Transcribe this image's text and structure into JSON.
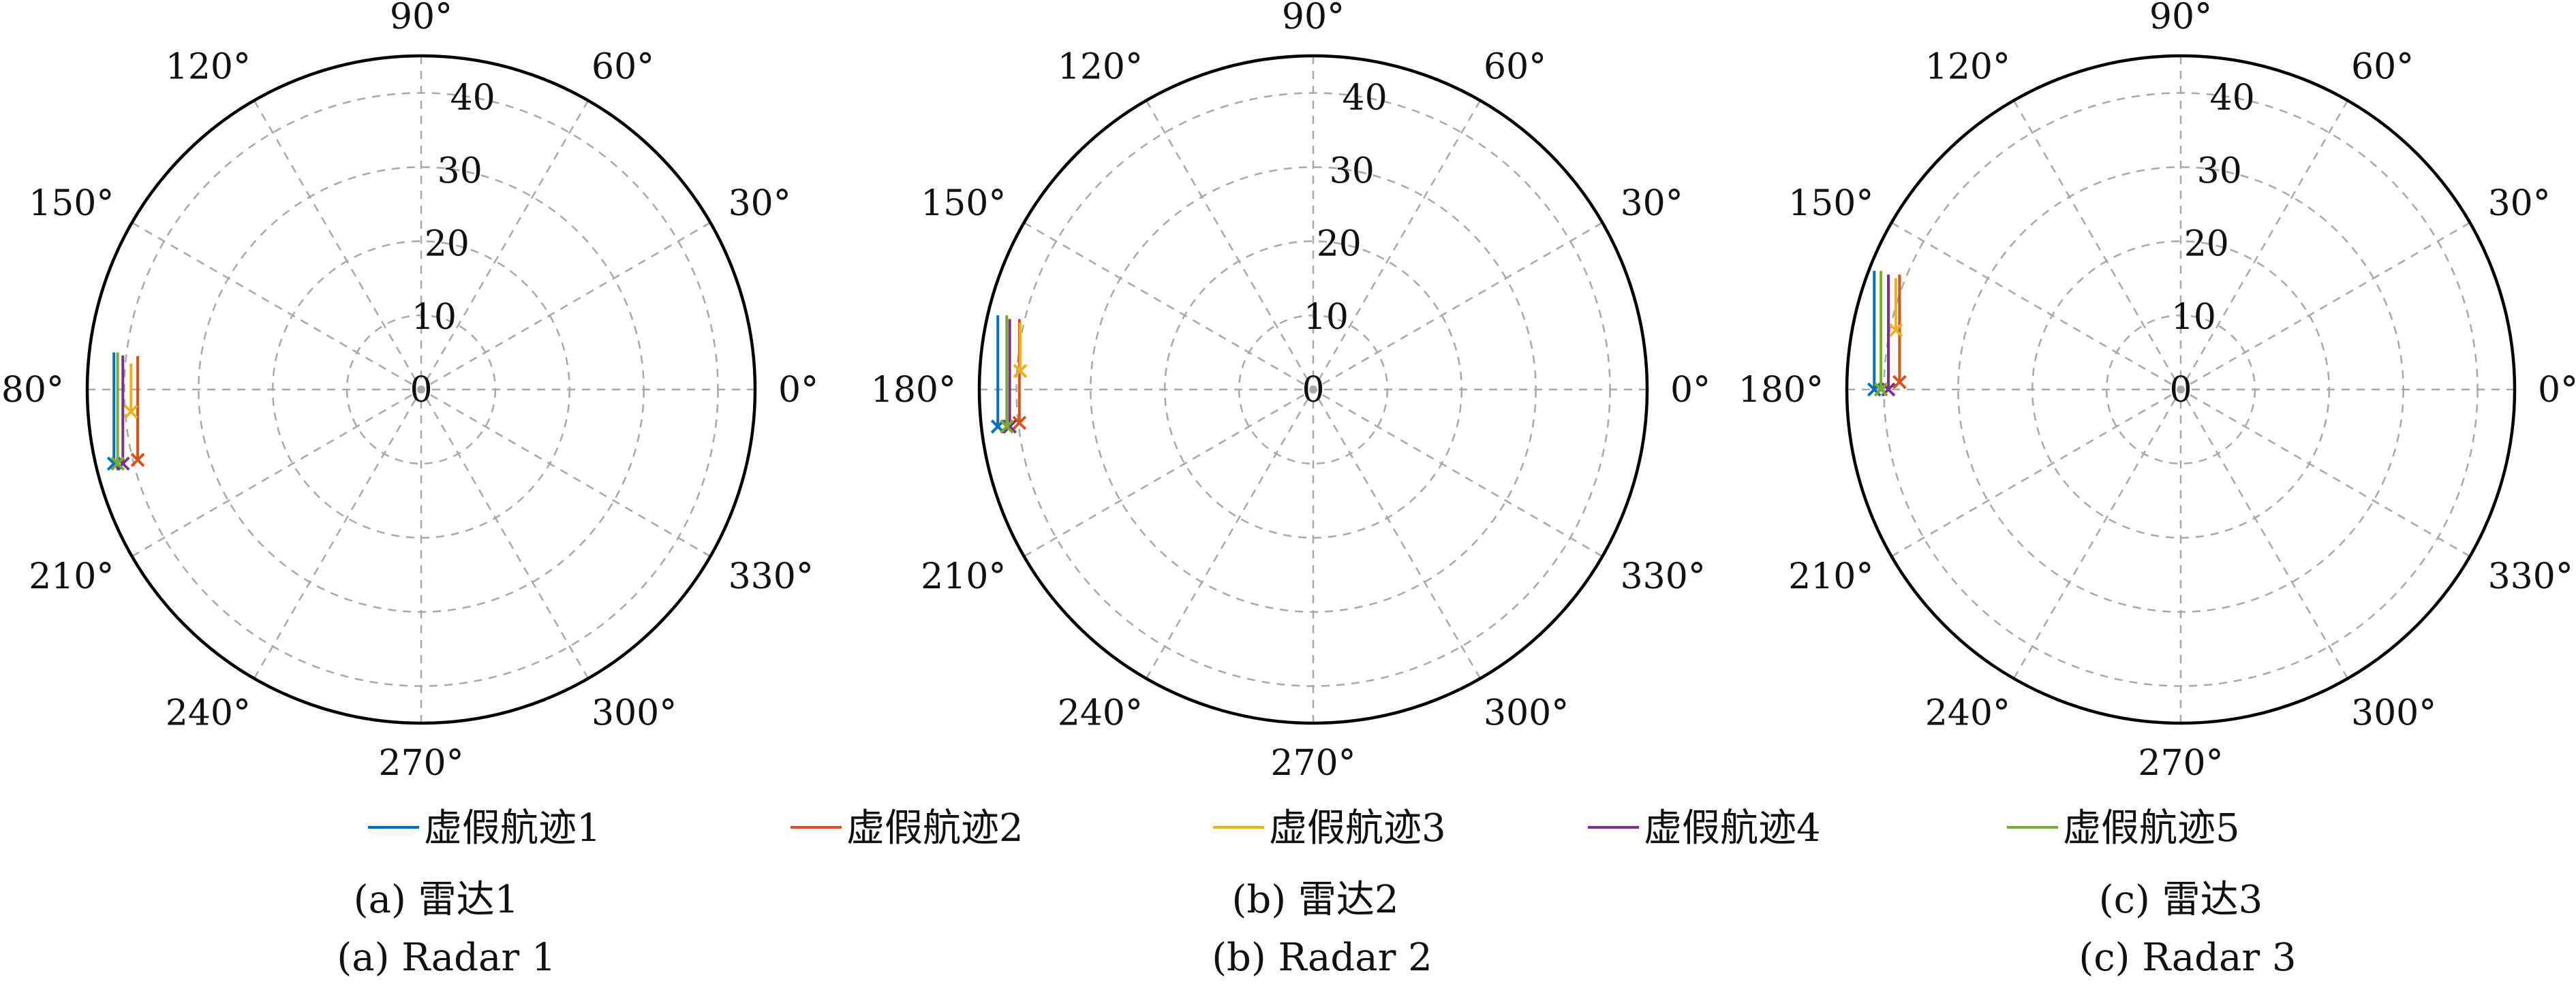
{
  "theta_ticks": [
    "0°",
    "30°",
    "60°",
    "90°",
    "120°",
    "150°",
    "180°",
    "210°",
    "240°",
    "270°",
    "300°",
    "330°"
  ],
  "r_ticks": [
    "0",
    "10",
    "20",
    "30",
    "40"
  ],
  "legend": [
    {
      "label": "虚假航迹1",
      "color": "#0072BD"
    },
    {
      "label": "虚假航迹2",
      "color": "#D95319"
    },
    {
      "label": "虚假航迹3",
      "color": "#EDB120"
    },
    {
      "label": "虚假航迹4",
      "color": "#7E2F8E"
    },
    {
      "label": "虚假航迹5",
      "color": "#77AC30"
    }
  ],
  "captions": [
    {
      "cn": "(a) 雷达1",
      "en": "(a) Radar 1"
    },
    {
      "cn": "(b) 雷达2",
      "en": "(b) Radar 2"
    },
    {
      "cn": "(c) 雷达3",
      "en": "(c) Radar 3"
    }
  ],
  "chart_data": [
    {
      "type": "line",
      "coordinate_system": "polar",
      "theta_unit": "degrees",
      "r_range": [
        0,
        45
      ],
      "grid": true,
      "series": [
        {
          "name": "虚假航迹1",
          "x": [
            -41.4,
            -41.4,
            -41.4
          ],
          "y": [
            5.0,
            -4.0,
            -10.0
          ]
        },
        {
          "name": "虚假航迹2",
          "x": [
            -38.2,
            -38.2,
            -38.2
          ],
          "y": [
            4.5,
            -3.5,
            -9.5
          ]
        },
        {
          "name": "虚假航迹3",
          "x": [
            -39.1,
            -39.1,
            -39.1
          ],
          "y": [
            3.5,
            -1.5,
            -3.0
          ]
        },
        {
          "name": "虚假航迹4",
          "x": [
            -40.2,
            -40.2,
            -40.2
          ],
          "y": [
            4.6,
            -4.0,
            -10.0
          ]
        },
        {
          "name": "虚假航迹5",
          "x": [
            -40.9,
            -40.9,
            -40.9
          ],
          "y": [
            5.0,
            -4.0,
            -10.0
          ]
        }
      ]
    },
    {
      "type": "line",
      "coordinate_system": "polar",
      "theta_unit": "degrees",
      "r_range": [
        0,
        45
      ],
      "grid": true,
      "series": [
        {
          "name": "虚假航迹1",
          "x": [
            -42.5,
            -42.5,
            -42.5
          ],
          "y": [
            10.0,
            0.0,
            -5.0
          ]
        },
        {
          "name": "虚假航迹2",
          "x": [
            -39.6,
            -39.6,
            -39.6
          ],
          "y": [
            9.5,
            1.0,
            -4.5
          ]
        },
        {
          "name": "虚假航迹3",
          "x": [
            -39.5,
            -39.5,
            -39.5
          ],
          "y": [
            9.0,
            5.0,
            2.5
          ]
        },
        {
          "name": "虚假航迹4",
          "x": [
            -40.9,
            -40.9,
            -40.9
          ],
          "y": [
            9.5,
            0.0,
            -5.0
          ]
        },
        {
          "name": "虚假航迹5",
          "x": [
            -41.3,
            -41.3,
            -41.3
          ],
          "y": [
            10.0,
            0.0,
            -5.0
          ]
        }
      ]
    },
    {
      "type": "line",
      "coordinate_system": "polar",
      "theta_unit": "degrees",
      "r_range": [
        0,
        45
      ],
      "grid": true,
      "series": [
        {
          "name": "虚假航迹1",
          "x": [
            -41.3,
            -41.3,
            -41.3
          ],
          "y": [
            16.0,
            5.0,
            0.0
          ]
        },
        {
          "name": "虚假航迹2",
          "x": [
            -37.9,
            -37.9,
            -37.9
          ],
          "y": [
            15.5,
            5.0,
            1.0
          ]
        },
        {
          "name": "虚假航迹3",
          "x": [
            -38.4,
            -38.4,
            -38.4
          ],
          "y": [
            15.0,
            10.0,
            8.0
          ]
        },
        {
          "name": "虚假航迹4",
          "x": [
            -39.4,
            -39.4,
            -39.4
          ],
          "y": [
            15.5,
            5.0,
            0.0
          ]
        },
        {
          "name": "虚假航迹5",
          "x": [
            -40.4,
            -40.4,
            -40.4
          ],
          "y": [
            16.0,
            5.0,
            0.0
          ]
        }
      ]
    }
  ]
}
